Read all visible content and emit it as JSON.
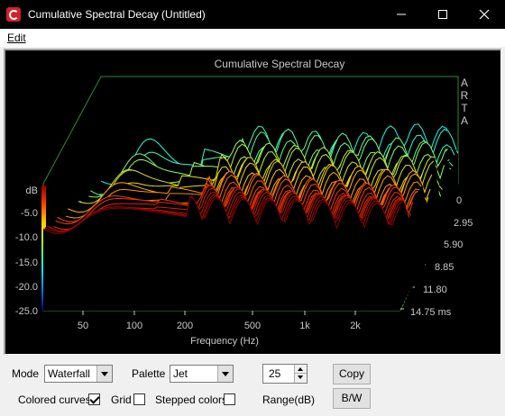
{
  "window": {
    "title": "Cumulative Spectral Decay  (Untitled)"
  },
  "menu": {
    "edit": "Edit"
  },
  "plot": {
    "title": "Cumulative Spectral Decay",
    "brand": [
      "A",
      "R",
      "T",
      "A"
    ],
    "y_unit": "dB",
    "y_ticks": [
      "-5.0",
      "-10.0",
      "-15.0",
      "-20.0",
      "-25.0"
    ],
    "x_ticks": [
      "50",
      "100",
      "200",
      "500",
      "1k",
      "2k"
    ],
    "xlabel": "Frequency (Hz)",
    "z_ticks": [
      "0",
      "2.95",
      "5.90",
      "8.85",
      "11.80",
      "14.75 ms"
    ]
  },
  "chart_data": {
    "type": "area",
    "title": "Cumulative Spectral Decay",
    "xlabel": "Frequency (Hz)",
    "ylabel": "dB",
    "zlabel": "ms",
    "x_scale": "log",
    "x_ticks": [
      50,
      100,
      200,
      500,
      1000,
      2000
    ],
    "y_ticks": [
      -5,
      -10,
      -15,
      -20,
      -25
    ],
    "z_ticks": [
      0,
      2.95,
      5.9,
      8.85,
      11.8,
      14.75
    ],
    "ylim": [
      -25,
      0
    ],
    "zlim": [
      0,
      14.75
    ],
    "palette": "Jet"
  },
  "controls": {
    "mode_label": "Mode",
    "mode_value": "Waterfall",
    "palette_label": "Palette",
    "palette_value": "Jet",
    "range_value": "25",
    "range_label": "Range(dB)",
    "copy": "Copy",
    "bw": "B/W",
    "colored_curves": "Colored curves",
    "colored_curves_checked": true,
    "grid": "Grid",
    "grid_checked": false,
    "stepped": "Stepped colors",
    "stepped_checked": false
  }
}
